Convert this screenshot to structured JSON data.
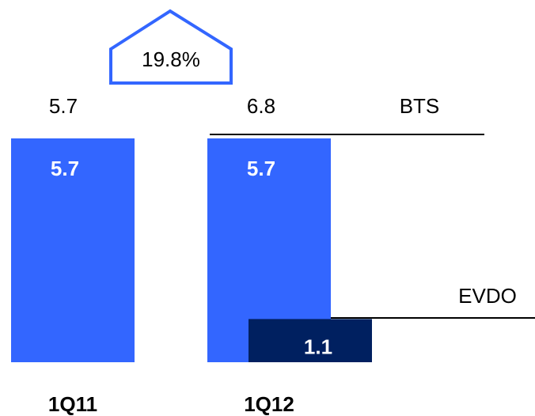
{
  "chart_data": {
    "type": "bar",
    "categories": [
      "1Q11",
      "1Q12"
    ],
    "series": [
      {
        "name": "BTS",
        "color": "#3366ff",
        "values": [
          5.7,
          5.7
        ]
      },
      {
        "name": "EVDO",
        "color": "#002060",
        "values": [
          null,
          1.1
        ]
      }
    ],
    "totals": [
      5.7,
      6.8
    ],
    "annotation": "19.8%"
  }
}
